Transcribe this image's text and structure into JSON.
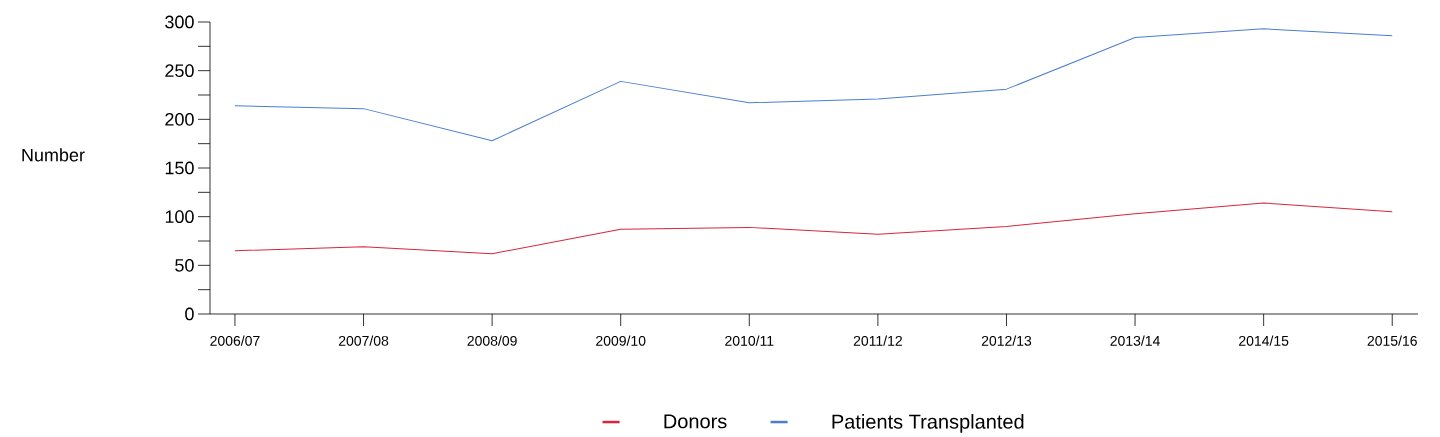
{
  "chart_data": {
    "type": "line",
    "ylabel": "Number",
    "categories": [
      "2006/07",
      "2007/08",
      "2008/09",
      "2009/10",
      "2010/11",
      "2011/12",
      "2012/13",
      "2013/14",
      "2014/15",
      "2015/16"
    ],
    "series": [
      {
        "name": "Donors",
        "color": "#d7263d",
        "values": [
          65,
          69,
          62,
          87,
          89,
          82,
          90,
          103,
          114,
          105
        ]
      },
      {
        "name": "Patients Transplanted",
        "color": "#4a7fcf",
        "values": [
          214,
          211,
          178,
          239,
          217,
          221,
          231,
          284,
          293,
          286
        ]
      }
    ],
    "ylim": [
      0,
      300
    ],
    "yticks": [
      0,
      {
        "value": 25,
        "label": null
      },
      50,
      {
        "value": 75,
        "label": null
      },
      100,
      {
        "value": 125,
        "label": null
      },
      150,
      {
        "value": 175,
        "label": null
      },
      200,
      {
        "value": 225,
        "label": null
      },
      250,
      {
        "value": 275,
        "label": null
      },
      300
    ],
    "grid": false,
    "legend": "bottom",
    "marker": "none",
    "line_style": "solid"
  }
}
